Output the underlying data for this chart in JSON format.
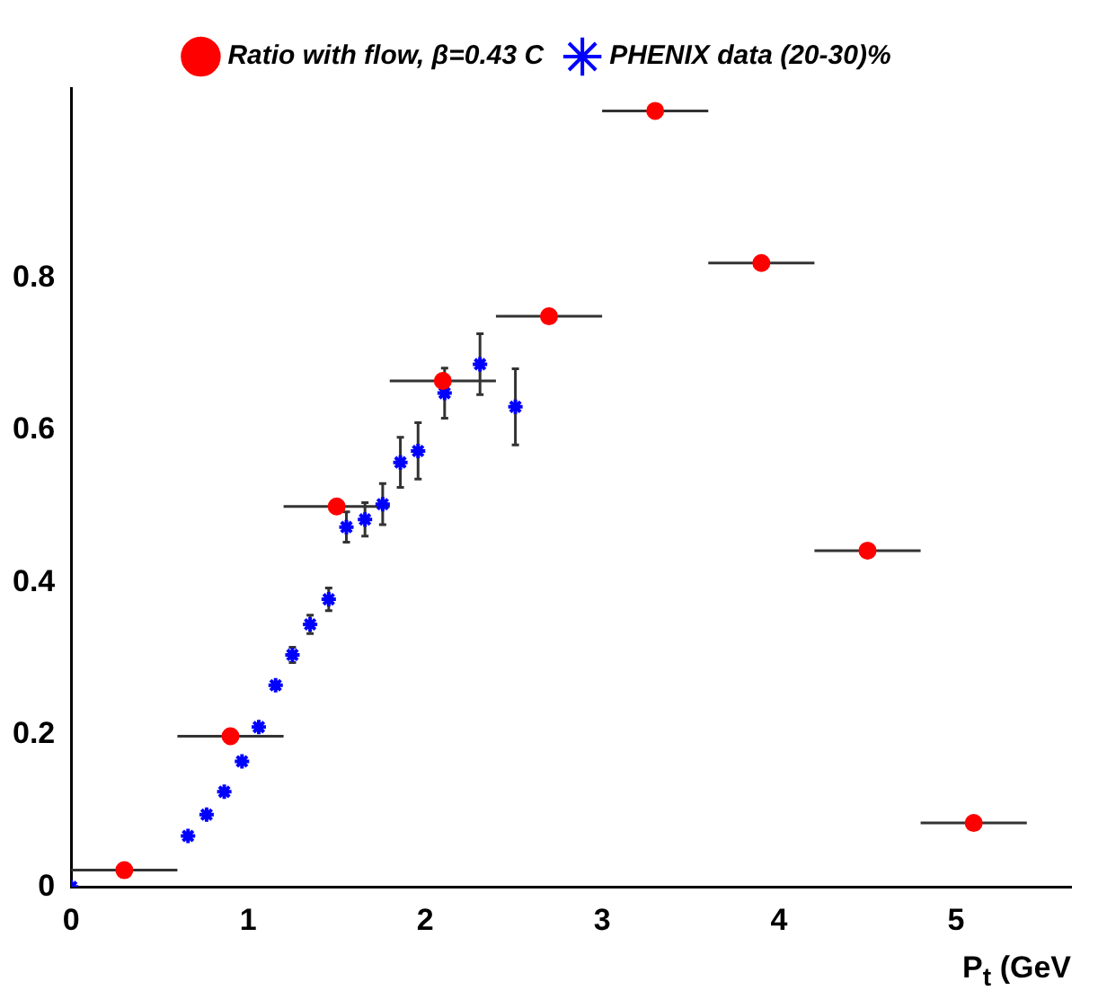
{
  "chart_data": {
    "type": "scatter",
    "xlabel": "P$_{t}$ (GeV",
    "xlim": [
      0,
      5.65
    ],
    "xticks": [
      0,
      1,
      2,
      3,
      4,
      5
    ],
    "ylim": [
      0,
      1.05
    ],
    "yticks": [
      0,
      0.2,
      0.4,
      0.6,
      0.8
    ],
    "grid": false,
    "legend": "top",
    "series": [
      {
        "name": "Ratio with flow, β=0.43 C",
        "color": "#ff0000",
        "marker": "circle",
        "x": [
          0.3,
          0.9,
          1.5,
          2.1,
          2.7,
          3.3,
          3.9,
          4.5,
          5.1
        ],
        "values": [
          0.022,
          0.198,
          0.5,
          0.665,
          0.75,
          1.02,
          0.82,
          0.442,
          0.084
        ],
        "xerrors": [
          0.3,
          0.3,
          0.3,
          0.3,
          0.3,
          0.3,
          0.3,
          0.3,
          0.3
        ]
      },
      {
        "name": "PHENIX data (20-30)%",
        "color": "#0000ff",
        "marker": "cross",
        "x": [
          0,
          0.66,
          0.765,
          0.865,
          0.965,
          1.06,
          1.155,
          1.25,
          1.35,
          1.455,
          1.555,
          1.66,
          1.76,
          1.86,
          1.96,
          2.11,
          2.31,
          2.51
        ],
        "values": [
          0,
          0.067,
          0.095,
          0.125,
          0.165,
          0.21,
          0.265,
          0.305,
          0.345,
          0.378,
          0.473,
          0.483,
          0.503,
          0.558,
          0.573,
          0.649,
          0.687,
          0.631
        ],
        "errors": [
          null,
          null,
          null,
          null,
          null,
          null,
          null,
          0.01,
          0.012,
          0.015,
          0.02,
          0.022,
          0.027,
          0.033,
          0.037,
          0.033,
          0.04,
          0.05
        ]
      }
    ]
  }
}
